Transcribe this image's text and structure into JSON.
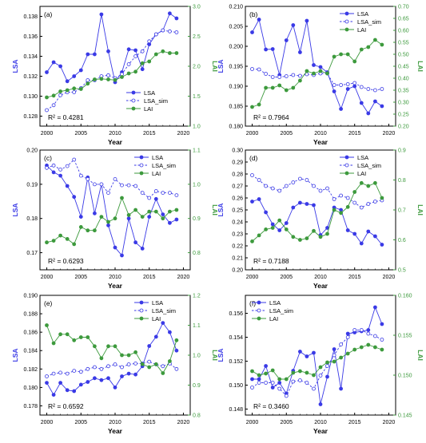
{
  "colors": {
    "lsa": "#3a3ae6",
    "lai": "#3d9a3d",
    "axis": "#000000"
  },
  "chart_data": [
    {
      "panel": "(a)",
      "type": "line",
      "x": [
        2000,
        2001,
        2002,
        2003,
        2004,
        2005,
        2006,
        2007,
        2008,
        2009,
        2010,
        2011,
        2012,
        2013,
        2014,
        2015,
        2016,
        2017,
        2018,
        2019
      ],
      "series": [
        {
          "name": "LSA",
          "axis": "left",
          "style": "solid-filled",
          "values": [
            0.1324,
            0.1334,
            0.133,
            0.1315,
            0.132,
            0.1326,
            0.1342,
            0.1342,
            0.1382,
            0.1345,
            0.1314,
            0.1324,
            0.1347,
            0.1346,
            0.1327,
            0.1352,
            0.1362,
            0.1366,
            0.1383,
            0.1378
          ]
        },
        {
          "name": "LSA_sim",
          "axis": "left",
          "style": "dashed-open",
          "values": [
            0.1286,
            0.1291,
            0.1301,
            0.1304,
            0.1304,
            0.1308,
            0.1316,
            0.1316,
            0.132,
            0.1321,
            0.1318,
            0.1322,
            0.1332,
            0.134,
            0.1345,
            0.1355,
            0.1362,
            0.1366,
            0.1365,
            0.1364
          ]
        },
        {
          "name": "LAI",
          "axis": "right",
          "style": "solid-filled",
          "values": [
            1.48,
            1.51,
            1.58,
            1.6,
            1.63,
            1.62,
            1.71,
            1.78,
            1.79,
            1.78,
            1.77,
            1.82,
            1.88,
            1.91,
            2.05,
            2.08,
            2.2,
            2.25,
            2.22,
            2.22
          ]
        }
      ],
      "xlabel": "Year",
      "ylabel": "LSA",
      "y2label": "LAI",
      "xlim": [
        1999,
        2021
      ],
      "xticks": [
        2000,
        2005,
        2010,
        2015,
        2020
      ],
      "ylim": [
        0.127,
        0.139
      ],
      "yticks": [
        0.128,
        0.13,
        0.132,
        0.134,
        0.136,
        0.138
      ],
      "y2lim": [
        1.0,
        3.0
      ],
      "y2ticks": [
        1.0,
        1.5,
        2.0,
        2.5,
        3.0
      ],
      "legend_position": "bottom-right",
      "r2": "R² = 0.4281"
    },
    {
      "panel": "(b)",
      "type": "line",
      "x": [
        2000,
        2001,
        2002,
        2003,
        2004,
        2005,
        2006,
        2007,
        2008,
        2009,
        2010,
        2011,
        2012,
        2013,
        2014,
        2015,
        2016,
        2017,
        2018,
        2019
      ],
      "series": [
        {
          "name": "LSA",
          "axis": "left",
          "style": "solid-filled",
          "values": [
            0.2035,
            0.2067,
            0.1992,
            0.1993,
            0.1928,
            0.2015,
            0.2053,
            0.1985,
            0.2064,
            0.1953,
            0.1948,
            0.1935,
            0.1887,
            0.1843,
            0.1893,
            0.19,
            0.1858,
            0.1832,
            0.1862,
            0.185
          ]
        },
        {
          "name": "LSA_sim",
          "axis": "left",
          "style": "dashed-open",
          "values": [
            0.1943,
            0.1942,
            0.1931,
            0.1923,
            0.1923,
            0.1925,
            0.1928,
            0.1926,
            0.193,
            0.1928,
            0.1932,
            0.1932,
            0.1903,
            0.1903,
            0.1905,
            0.1908,
            0.1898,
            0.1893,
            0.189,
            0.1893
          ]
        },
        {
          "name": "LAI",
          "axis": "right",
          "style": "solid-filled",
          "values": [
            0.28,
            0.29,
            0.36,
            0.36,
            0.37,
            0.35,
            0.36,
            0.39,
            0.43,
            0.42,
            0.43,
            0.42,
            0.49,
            0.5,
            0.5,
            0.47,
            0.52,
            0.53,
            0.56,
            0.54
          ]
        }
      ],
      "xlabel": "Year",
      "ylabel": "LSA",
      "y2label": "LAI",
      "xlim": [
        1999,
        2021
      ],
      "xticks": [
        2000,
        2005,
        2010,
        2015,
        2020
      ],
      "ylim": [
        0.18,
        0.21
      ],
      "yticks": [
        0.18,
        0.185,
        0.19,
        0.195,
        0.2,
        0.205,
        0.21
      ],
      "y2lim": [
        0.2,
        0.7
      ],
      "y2ticks": [
        0.2,
        0.25,
        0.3,
        0.35,
        0.4,
        0.45,
        0.5,
        0.55,
        0.6,
        0.65,
        0.7
      ],
      "legend_position": "top-right",
      "r2": "R² = 0.7964"
    },
    {
      "panel": "(c)",
      "type": "line",
      "x": [
        2000,
        2001,
        2002,
        2003,
        2004,
        2005,
        2006,
        2007,
        2008,
        2009,
        2010,
        2011,
        2012,
        2013,
        2014,
        2015,
        2016,
        2017,
        2018,
        2019
      ],
      "series": [
        {
          "name": "LSA",
          "axis": "left",
          "style": "solid-filled",
          "values": [
            0.1955,
            0.1935,
            0.1925,
            0.1895,
            0.1863,
            0.1805,
            0.192,
            0.1815,
            0.19,
            0.178,
            0.1715,
            0.1692,
            0.18,
            0.173,
            0.1712,
            0.1805,
            0.1857,
            0.1812,
            0.1787,
            0.1797
          ]
        },
        {
          "name": "LSA_sim",
          "axis": "left",
          "style": "dashed-open",
          "values": [
            0.1948,
            0.1955,
            0.1943,
            0.1953,
            0.1972,
            0.1925,
            0.1915,
            0.19,
            0.19,
            0.1875,
            0.1915,
            0.1897,
            0.1897,
            0.1895,
            0.1875,
            0.186,
            0.188,
            0.1875,
            0.1875,
            0.1868
          ]
        },
        {
          "name": "LAI",
          "axis": "right",
          "style": "solid-filled",
          "values": [
            0.83,
            0.835,
            0.85,
            0.84,
            0.825,
            0.875,
            0.865,
            0.865,
            0.905,
            0.89,
            0.9,
            0.96,
            0.91,
            0.925,
            0.905,
            0.92,
            0.92,
            0.9,
            0.92,
            0.925
          ]
        }
      ],
      "xlabel": "Year",
      "ylabel": "LSA",
      "y2label": "LAI",
      "xlim": [
        1999,
        2021
      ],
      "xticks": [
        2000,
        2005,
        2010,
        2015,
        2020
      ],
      "ylim": [
        0.165,
        0.2
      ],
      "yticks": [
        0.17,
        0.18,
        0.19,
        0.2
      ],
      "y2lim": [
        0.75,
        1.1
      ],
      "y2ticks": [
        0.8,
        0.9,
        1.0,
        1.1
      ],
      "legend_position": "top-right",
      "r2": "R² = 0.6293"
    },
    {
      "panel": "(d)",
      "type": "line",
      "x": [
        2000,
        2001,
        2002,
        2003,
        2004,
        2005,
        2006,
        2007,
        2008,
        2009,
        2010,
        2011,
        2012,
        2013,
        2014,
        2015,
        2016,
        2017,
        2018,
        2019
      ],
      "series": [
        {
          "name": "LSA",
          "axis": "left",
          "style": "solid-filled",
          "values": [
            0.257,
            0.259,
            0.248,
            0.238,
            0.233,
            0.239,
            0.252,
            0.256,
            0.255,
            0.254,
            0.229,
            0.235,
            0.252,
            0.25,
            0.233,
            0.23,
            0.222,
            0.232,
            0.228,
            0.221
          ]
        },
        {
          "name": "LSA_sim",
          "axis": "left",
          "style": "dashed-open",
          "values": [
            0.279,
            0.275,
            0.27,
            0.268,
            0.266,
            0.27,
            0.273,
            0.276,
            0.275,
            0.27,
            0.266,
            0.268,
            0.259,
            0.262,
            0.26,
            0.256,
            0.252,
            0.255,
            0.257,
            0.258
          ]
        },
        {
          "name": "LAI",
          "axis": "right",
          "style": "solid-filled",
          "values": [
            0.595,
            0.615,
            0.635,
            0.64,
            0.665,
            0.635,
            0.61,
            0.6,
            0.605,
            0.63,
            0.61,
            0.62,
            0.7,
            0.69,
            0.71,
            0.76,
            0.79,
            0.78,
            0.79,
            0.74
          ]
        }
      ],
      "xlabel": "Year",
      "ylabel": "LSA",
      "y2label": "LAI",
      "xlim": [
        1999,
        2021
      ],
      "xticks": [
        2000,
        2005,
        2010,
        2015,
        2020
      ],
      "ylim": [
        0.2,
        0.3
      ],
      "yticks": [
        0.2,
        0.21,
        0.22,
        0.23,
        0.24,
        0.25,
        0.26,
        0.27,
        0.28,
        0.29,
        0.3
      ],
      "y2lim": [
        0.5,
        0.9
      ],
      "y2ticks": [
        0.5,
        0.6,
        0.7,
        0.8,
        0.9
      ],
      "legend_position": "top-right",
      "r2": "R² = 0.7188"
    },
    {
      "panel": "(e)",
      "type": "line",
      "x": [
        2000,
        2001,
        2002,
        2003,
        2004,
        2005,
        2006,
        2007,
        2008,
        2009,
        2010,
        2011,
        2012,
        2013,
        2014,
        2015,
        2016,
        2017,
        2018,
        2019
      ],
      "series": [
        {
          "name": "LSA",
          "axis": "left",
          "style": "solid-filled",
          "values": [
            0.1805,
            0.1792,
            0.1805,
            0.1797,
            0.1796,
            0.1803,
            0.1806,
            0.181,
            0.1808,
            0.181,
            0.18,
            0.1812,
            0.1815,
            0.1814,
            0.1823,
            0.1845,
            0.1855,
            0.187,
            0.186,
            0.184
          ]
        },
        {
          "name": "LSA_sim",
          "axis": "left",
          "style": "dashed-open",
          "values": [
            0.1812,
            0.1815,
            0.1816,
            0.1815,
            0.1818,
            0.1817,
            0.182,
            0.1822,
            0.182,
            0.1823,
            0.1825,
            0.1822,
            0.1825,
            0.1826,
            0.1826,
            0.1828,
            0.1825,
            0.1823,
            0.1826,
            0.182
          ]
        },
        {
          "name": "LAI",
          "axis": "right",
          "style": "solid-filled",
          "values": [
            1.1,
            1.04,
            1.07,
            1.07,
            1.05,
            1.06,
            1.06,
            1.03,
            0.99,
            1.03,
            1.03,
            1.0,
            1.0,
            1.01,
            0.97,
            0.96,
            0.97,
            0.94,
            0.98,
            1.05
          ]
        }
      ],
      "xlabel": "Year",
      "ylabel": "LSA",
      "y2label": "LAI",
      "xlim": [
        1999,
        2021
      ],
      "xticks": [
        2000,
        2005,
        2010,
        2015,
        2020
      ],
      "ylim": [
        0.177,
        0.19
      ],
      "yticks": [
        0.178,
        0.18,
        0.182,
        0.184,
        0.186,
        0.188,
        0.19
      ],
      "y2lim": [
        0.8,
        1.2
      ],
      "y2ticks": [
        0.8,
        0.9,
        1.0,
        1.1,
        1.2
      ],
      "legend_position": "top-right",
      "r2": "R² = 0.6592"
    },
    {
      "panel": "(f)",
      "type": "line",
      "x": [
        2000,
        2001,
        2002,
        2003,
        2004,
        2005,
        2006,
        2007,
        2008,
        2009,
        2010,
        2011,
        2012,
        2013,
        2014,
        2015,
        2016,
        2017,
        2018,
        2019
      ],
      "series": [
        {
          "name": "LSA",
          "axis": "left",
          "style": "solid-filled",
          "values": [
            0.1505,
            0.1505,
            0.1516,
            0.1498,
            0.1502,
            0.1493,
            0.1512,
            0.1528,
            0.1524,
            0.1527,
            0.1484,
            0.1507,
            0.153,
            0.1497,
            0.1543,
            0.1544,
            0.1545,
            0.1546,
            0.1565,
            0.1551
          ]
        },
        {
          "name": "LSA_sim",
          "axis": "left",
          "style": "dashed-open",
          "values": [
            0.1498,
            0.1502,
            0.1502,
            0.1502,
            0.1497,
            0.1491,
            0.1503,
            0.1504,
            0.1502,
            0.1497,
            0.1508,
            0.1516,
            0.1525,
            0.1534,
            0.154,
            0.1546,
            0.1546,
            0.1543,
            0.1541,
            0.1538
          ]
        },
        {
          "name": "LAI",
          "axis": "right",
          "style": "solid-filled",
          "values": [
            0.1505,
            0.15,
            0.1502,
            0.1506,
            0.1495,
            0.1495,
            0.1503,
            0.1505,
            0.1503,
            0.15,
            0.151,
            0.1516,
            0.1517,
            0.1522,
            0.1527,
            0.1532,
            0.1535,
            0.1538,
            0.1535,
            0.1532
          ]
        }
      ],
      "xlabel": "Year",
      "ylabel": "LSA",
      "y2label": "LAI",
      "xlim": [
        1999,
        2021
      ],
      "xticks": [
        2000,
        2005,
        2010,
        2015,
        2020
      ],
      "ylim": [
        0.1475,
        0.1575
      ],
      "yticks": [
        0.148,
        0.15,
        0.152,
        0.154,
        0.156
      ],
      "y2lim": [
        0.145,
        0.16
      ],
      "y2ticks": [
        0.145,
        0.15,
        0.155,
        0.16
      ],
      "legend_position": "top-left",
      "r2": "R² = 0.3460"
    }
  ]
}
